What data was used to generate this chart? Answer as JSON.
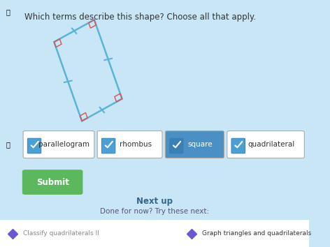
{
  "bg_color": "#c8e6f5",
  "title_text": "Which terms describe this shape? Choose all that apply.",
  "shape_color": "#5ab4d6",
  "shape_lw": 1.8,
  "right_angle_color": "#e05050",
  "tick_color": "#5ab4d6",
  "buttons": [
    {
      "label": "parallelogram",
      "checked": true,
      "highlighted": false
    },
    {
      "label": "rhombus",
      "checked": true,
      "highlighted": false
    },
    {
      "label": "square",
      "checked": true,
      "highlighted": true
    },
    {
      "label": "quadrilateral",
      "checked": true,
      "highlighted": false
    }
  ],
  "submit_label": "Submit",
  "submit_color": "#5cb85c",
  "submit_text_color": "#ffffff",
  "next_up_text": "Next up",
  "done_text": "Done for now? Try these next:",
  "bottom_left_text": "Classify quadrilaterals II",
  "bottom_right_text": "Graph triangles and quadrilaterals",
  "bottom_bar_color": "#ffffff",
  "bottom_diamond_color": "#6a5acd",
  "font_color": "#333333",
  "light_font_color": "#555577"
}
